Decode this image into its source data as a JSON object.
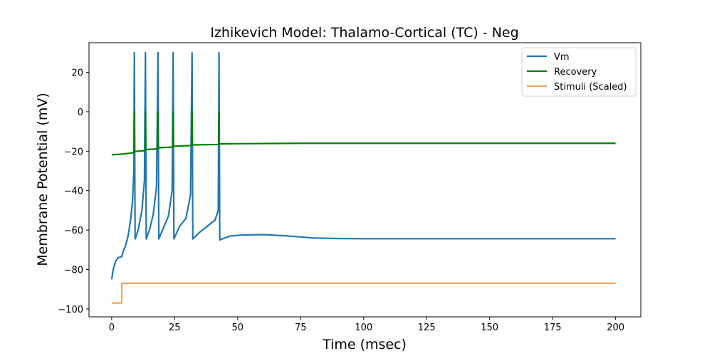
{
  "chart_data": {
    "type": "line",
    "title": "Izhikevich Model: Thalamo-Cortical (TC) - Neg",
    "xlabel": "Time (msec)",
    "ylabel": "Membrane Potential (mV)",
    "xlim": [
      -9,
      210
    ],
    "ylim": [
      -104,
      35
    ],
    "xticks": [
      0,
      25,
      50,
      75,
      100,
      125,
      150,
      175,
      200
    ],
    "yticks": [
      -100,
      -80,
      -60,
      -40,
      -20,
      0,
      20
    ],
    "grid": false,
    "legend": "top-right",
    "series": [
      {
        "name": "Vm",
        "color": "#1f77b4",
        "x": [
          0,
          0.6,
          1.5,
          2.5,
          4,
          4.5,
          5.5,
          6.5,
          7.5,
          8.3,
          8.8,
          9.0,
          9.0,
          9.3,
          10.5,
          12,
          13,
          13.4,
          13.4,
          13.7,
          15,
          16.5,
          17.8,
          18.4,
          18.4,
          18.7,
          20.5,
          22.5,
          24,
          24.4,
          24.4,
          24.7,
          27,
          29.5,
          31.3,
          31.9,
          31.9,
          32.2,
          35,
          38,
          41,
          42.3,
          42.6,
          42.6,
          42.9,
          47,
          52,
          60,
          70,
          80,
          90,
          100,
          125,
          150,
          175,
          200
        ],
        "y": [
          -85,
          -80,
          -76,
          -74,
          -73.5,
          -71,
          -68,
          -63,
          -55,
          -45,
          -30,
          30,
          30,
          -64.5,
          -60,
          -50,
          -35,
          30,
          30,
          -64.5,
          -60,
          -52,
          -38,
          30,
          30,
          -64.5,
          -59,
          -53,
          -40,
          30,
          30,
          -64.5,
          -58,
          -54,
          -42,
          30,
          30,
          -64.5,
          -61,
          -58,
          -55,
          -50,
          30,
          30,
          -65,
          -63,
          -62.5,
          -62.3,
          -63,
          -64,
          -64.3,
          -64.4,
          -64.4,
          -64.4,
          -64.4,
          -64.4
        ]
      },
      {
        "name": "Recovery",
        "color": "#008000",
        "x": [
          0,
          3,
          6,
          8.9,
          9.0,
          9.0,
          9.1,
          13.3,
          13.4,
          13.4,
          13.5,
          18.3,
          18.4,
          18.4,
          18.5,
          24.3,
          24.4,
          24.4,
          24.5,
          31.8,
          31.9,
          31.9,
          32.0,
          42.5,
          42.6,
          42.6,
          42.7,
          50,
          60,
          75,
          100,
          125,
          150,
          175,
          200
        ],
        "y": [
          -21.8,
          -21.6,
          -21.2,
          -20.7,
          0,
          0,
          -20.2,
          -19.7,
          0,
          0,
          -19.2,
          -18.8,
          0,
          0,
          -18.3,
          -17.9,
          0,
          0,
          -17.5,
          -17.1,
          0,
          0,
          -16.8,
          -16.6,
          0,
          0,
          -16.3,
          -16.2,
          -16.1,
          -16.0,
          -16.0,
          -16.0,
          -16.0,
          -16.0,
          -16.0
        ]
      },
      {
        "name": "Stimuli (Scaled)",
        "color": "#f4a460",
        "x": [
          0,
          4,
          4,
          200
        ],
        "y": [
          -97,
          -97,
          -87,
          -87
        ]
      }
    ]
  }
}
